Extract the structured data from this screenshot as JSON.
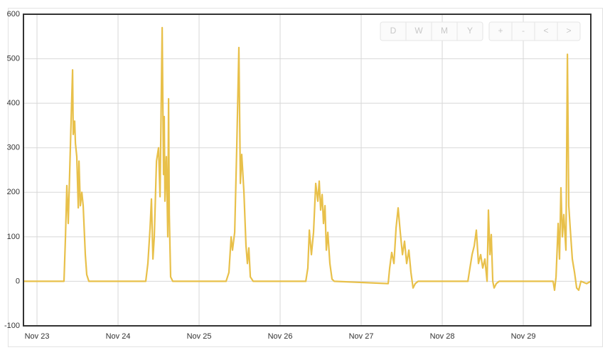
{
  "chart_data": {
    "type": "line",
    "x": [
      22.833,
      23.316,
      23.333,
      23.351,
      23.368,
      23.386,
      23.404,
      23.421,
      23.439,
      23.447,
      23.465,
      23.474,
      23.491,
      23.509,
      23.518,
      23.535,
      23.553,
      23.57,
      23.596,
      23.614,
      23.64,
      24.342,
      24.368,
      24.395,
      24.412,
      24.43,
      24.447,
      24.474,
      24.5,
      24.518,
      24.544,
      24.561,
      24.57,
      24.579,
      24.596,
      24.614,
      24.623,
      24.632,
      24.649,
      24.675,
      25.333,
      25.368,
      25.395,
      25.412,
      25.439,
      25.465,
      25.491,
      25.509,
      25.526,
      25.553,
      25.579,
      25.596,
      25.614,
      25.632,
      25.667,
      26.316,
      26.342,
      26.36,
      26.386,
      26.412,
      26.439,
      26.465,
      26.482,
      26.5,
      26.518,
      26.535,
      26.553,
      26.57,
      26.588,
      26.614,
      26.64,
      26.667,
      27.333,
      27.351,
      27.377,
      27.404,
      27.43,
      27.456,
      27.482,
      27.509,
      27.535,
      27.561,
      27.588,
      27.614,
      27.64,
      27.667,
      27.702,
      28.316,
      28.342,
      28.368,
      28.395,
      28.421,
      28.447,
      28.474,
      28.5,
      28.526,
      28.553,
      28.57,
      28.588,
      28.605,
      28.623,
      28.64,
      28.667,
      28.702,
      29.368,
      29.386,
      29.404,
      29.43,
      29.447,
      29.465,
      29.482,
      29.5,
      29.526,
      29.544,
      29.561,
      29.579,
      29.605,
      29.632,
      29.658,
      29.684,
      29.711,
      29.781,
      29.833
    ],
    "series": [
      {
        "color": "#e8c04a",
        "values": [
          0,
          0,
          0,
          100,
          215,
          130,
          250,
          360,
          475,
          330,
          360,
          310,
          280,
          165,
          270,
          170,
          200,
          170,
          60,
          15,
          0,
          0,
          40,
          120,
          185,
          50,
          100,
          270,
          300,
          190,
          570,
          240,
          370,
          180,
          280,
          100,
          410,
          150,
          10,
          0,
          0,
          20,
          100,
          70,
          110,
          300,
          525,
          220,
          285,
          200,
          80,
          40,
          75,
          10,
          0,
          0,
          30,
          115,
          60,
          110,
          220,
          180,
          225,
          160,
          195,
          130,
          170,
          70,
          110,
          40,
          5,
          0,
          -5,
          30,
          65,
          40,
          120,
          165,
          110,
          60,
          90,
          40,
          70,
          20,
          -15,
          -5,
          0,
          0,
          30,
          60,
          80,
          115,
          40,
          60,
          30,
          50,
          0,
          160,
          60,
          105,
          0,
          -15,
          -5,
          0,
          0,
          -20,
          10,
          130,
          50,
          210,
          100,
          150,
          70,
          510,
          170,
          120,
          50,
          20,
          -15,
          -20,
          0,
          -5,
          0
        ]
      }
    ],
    "xlim": [
      22.833,
      29.833
    ],
    "xticks": [
      {
        "value": 23,
        "label": "Nov 23"
      },
      {
        "value": 24,
        "label": "Nov 24"
      },
      {
        "value": 25,
        "label": "Nov 25"
      },
      {
        "value": 26,
        "label": "Nov 26"
      },
      {
        "value": 27,
        "label": "Nov 27"
      },
      {
        "value": 28,
        "label": "Nov 28"
      },
      {
        "value": 29,
        "label": "Nov 29"
      }
    ],
    "ylim": [
      -100,
      600
    ],
    "yticks": [
      -100,
      0,
      100,
      200,
      300,
      400,
      500,
      600
    ],
    "grid": true
  },
  "controls": {
    "range": [
      "D",
      "W",
      "M",
      "Y"
    ],
    "nav": [
      "+",
      "-",
      "<",
      ">"
    ]
  }
}
